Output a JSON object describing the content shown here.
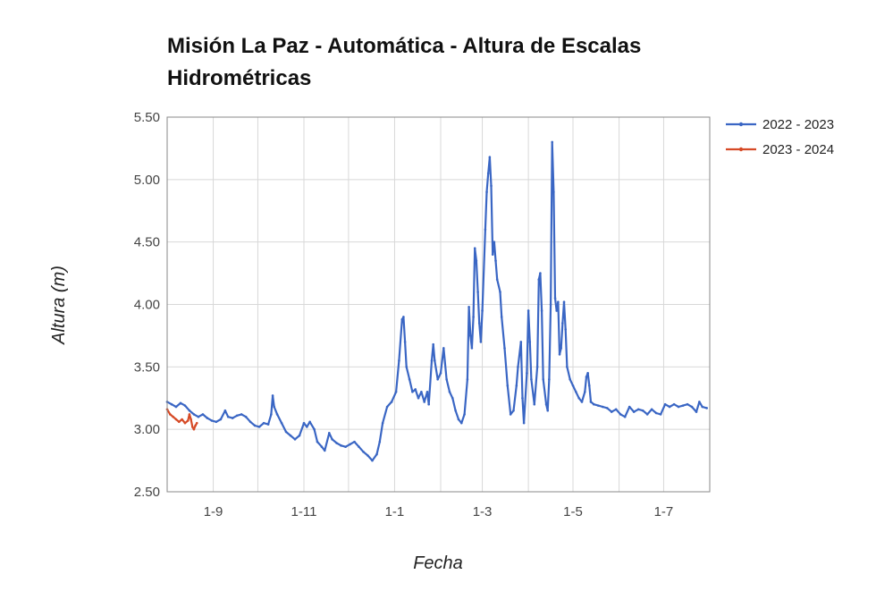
{
  "chart_data": {
    "type": "line",
    "title": "Misión La Paz - Automática - Altura de Escalas Hidrométricas",
    "xlabel": "Fecha",
    "ylabel": "Altura (m)",
    "ylim": [
      2.5,
      5.5
    ],
    "yticks": [
      "2.50",
      "3.00",
      "3.50",
      "4.00",
      "4.50",
      "5.00",
      "5.50"
    ],
    "x_axis_start": "2022-08-01",
    "x_axis_end": "2023-08-01",
    "xticks": [
      {
        "label": "1-9",
        "date": "2022-09-01"
      },
      {
        "label": "1-11",
        "date": "2022-11-01"
      },
      {
        "label": "1-1",
        "date": "2023-01-01"
      },
      {
        "label": "1-3",
        "date": "2023-03-01"
      },
      {
        "label": "1-5",
        "date": "2023-05-01"
      },
      {
        "label": "1-7",
        "date": "2023-07-01"
      }
    ],
    "grid": true,
    "legend_position": "right",
    "series": [
      {
        "name": "2022 - 2023",
        "color": "#3a66c4",
        "points": [
          [
            "2022-08-01",
            3.22
          ],
          [
            "2022-08-04",
            3.2
          ],
          [
            "2022-08-07",
            3.18
          ],
          [
            "2022-08-10",
            3.21
          ],
          [
            "2022-08-13",
            3.19
          ],
          [
            "2022-08-16",
            3.15
          ],
          [
            "2022-08-19",
            3.12
          ],
          [
            "2022-08-22",
            3.1
          ],
          [
            "2022-08-25",
            3.12
          ],
          [
            "2022-08-28",
            3.09
          ],
          [
            "2022-08-31",
            3.07
          ],
          [
            "2022-09-03",
            3.06
          ],
          [
            "2022-09-06",
            3.08
          ],
          [
            "2022-09-09",
            3.15
          ],
          [
            "2022-09-11",
            3.1
          ],
          [
            "2022-09-14",
            3.09
          ],
          [
            "2022-09-17",
            3.11
          ],
          [
            "2022-09-20",
            3.12
          ],
          [
            "2022-09-23",
            3.1
          ],
          [
            "2022-09-26",
            3.06
          ],
          [
            "2022-09-29",
            3.03
          ],
          [
            "2022-10-02",
            3.02
          ],
          [
            "2022-10-05",
            3.05
          ],
          [
            "2022-10-08",
            3.04
          ],
          [
            "2022-10-10",
            3.12
          ],
          [
            "2022-10-11",
            3.27
          ],
          [
            "2022-10-12",
            3.18
          ],
          [
            "2022-10-14",
            3.12
          ],
          [
            "2022-10-17",
            3.05
          ],
          [
            "2022-10-20",
            2.98
          ],
          [
            "2022-10-23",
            2.95
          ],
          [
            "2022-10-26",
            2.92
          ],
          [
            "2022-10-29",
            2.95
          ],
          [
            "2022-11-01",
            3.05
          ],
          [
            "2022-11-03",
            3.02
          ],
          [
            "2022-11-05",
            3.06
          ],
          [
            "2022-11-08",
            3.0
          ],
          [
            "2022-11-10",
            2.9
          ],
          [
            "2022-11-13",
            2.86
          ],
          [
            "2022-11-15",
            2.83
          ],
          [
            "2022-11-18",
            2.97
          ],
          [
            "2022-11-20",
            2.92
          ],
          [
            "2022-11-23",
            2.89
          ],
          [
            "2022-11-26",
            2.87
          ],
          [
            "2022-11-29",
            2.86
          ],
          [
            "2022-12-02",
            2.88
          ],
          [
            "2022-12-05",
            2.9
          ],
          [
            "2022-12-08",
            2.86
          ],
          [
            "2022-12-11",
            2.82
          ],
          [
            "2022-12-14",
            2.79
          ],
          [
            "2022-12-17",
            2.75
          ],
          [
            "2022-12-20",
            2.8
          ],
          [
            "2022-12-22",
            2.9
          ],
          [
            "2022-12-24",
            3.05
          ],
          [
            "2022-12-27",
            3.18
          ],
          [
            "2022-12-30",
            3.22
          ],
          [
            "2023-01-02",
            3.3
          ],
          [
            "2023-01-04",
            3.55
          ],
          [
            "2023-01-06",
            3.88
          ],
          [
            "2023-01-07",
            3.9
          ],
          [
            "2023-01-08",
            3.7
          ],
          [
            "2023-01-09",
            3.5
          ],
          [
            "2023-01-11",
            3.4
          ],
          [
            "2023-01-13",
            3.3
          ],
          [
            "2023-01-15",
            3.32
          ],
          [
            "2023-01-17",
            3.25
          ],
          [
            "2023-01-19",
            3.3
          ],
          [
            "2023-01-21",
            3.22
          ],
          [
            "2023-01-23",
            3.3
          ],
          [
            "2023-01-24",
            3.2
          ],
          [
            "2023-01-26",
            3.55
          ],
          [
            "2023-01-27",
            3.68
          ],
          [
            "2023-01-28",
            3.55
          ],
          [
            "2023-01-30",
            3.4
          ],
          [
            "2023-02-01",
            3.45
          ],
          [
            "2023-02-03",
            3.65
          ],
          [
            "2023-02-05",
            3.4
          ],
          [
            "2023-02-07",
            3.3
          ],
          [
            "2023-02-09",
            3.25
          ],
          [
            "2023-02-11",
            3.15
          ],
          [
            "2023-02-13",
            3.08
          ],
          [
            "2023-02-15",
            3.05
          ],
          [
            "2023-02-17",
            3.12
          ],
          [
            "2023-02-19",
            3.4
          ],
          [
            "2023-02-20",
            3.98
          ],
          [
            "2023-02-21",
            3.75
          ],
          [
            "2023-02-22",
            3.65
          ],
          [
            "2023-02-23",
            3.9
          ],
          [
            "2023-02-24",
            4.45
          ],
          [
            "2023-02-25",
            4.35
          ],
          [
            "2023-02-26",
            4.1
          ],
          [
            "2023-02-27",
            3.85
          ],
          [
            "2023-02-28",
            3.7
          ],
          [
            "2023-03-01",
            3.95
          ],
          [
            "2023-03-03",
            4.6
          ],
          [
            "2023-03-04",
            4.9
          ],
          [
            "2023-03-05",
            5.05
          ],
          [
            "2023-03-06",
            5.18
          ],
          [
            "2023-03-07",
            4.95
          ],
          [
            "2023-03-08",
            4.4
          ],
          [
            "2023-03-09",
            4.5
          ],
          [
            "2023-03-10",
            4.35
          ],
          [
            "2023-03-11",
            4.2
          ],
          [
            "2023-03-13",
            4.1
          ],
          [
            "2023-03-14",
            3.9
          ],
          [
            "2023-03-16",
            3.65
          ],
          [
            "2023-03-18",
            3.35
          ],
          [
            "2023-03-20",
            3.12
          ],
          [
            "2023-03-22",
            3.15
          ],
          [
            "2023-03-24",
            3.35
          ],
          [
            "2023-03-25",
            3.5
          ],
          [
            "2023-03-27",
            3.7
          ],
          [
            "2023-03-28",
            3.25
          ],
          [
            "2023-03-29",
            3.05
          ],
          [
            "2023-03-31",
            3.45
          ],
          [
            "2023-04-01",
            3.95
          ],
          [
            "2023-04-02",
            3.7
          ],
          [
            "2023-04-03",
            3.4
          ],
          [
            "2023-04-05",
            3.2
          ],
          [
            "2023-04-07",
            3.5
          ],
          [
            "2023-04-08",
            4.2
          ],
          [
            "2023-04-09",
            4.25
          ],
          [
            "2023-04-10",
            3.95
          ],
          [
            "2023-04-11",
            3.4
          ],
          [
            "2023-04-13",
            3.2
          ],
          [
            "2023-04-14",
            3.15
          ],
          [
            "2023-04-15",
            3.4
          ],
          [
            "2023-04-16",
            4.0
          ],
          [
            "2023-04-17",
            5.3
          ],
          [
            "2023-04-18",
            4.9
          ],
          [
            "2023-04-19",
            4.05
          ],
          [
            "2023-04-20",
            3.95
          ],
          [
            "2023-04-21",
            4.02
          ],
          [
            "2023-04-22",
            3.6
          ],
          [
            "2023-04-23",
            3.65
          ],
          [
            "2023-04-24",
            3.85
          ],
          [
            "2023-04-25",
            4.02
          ],
          [
            "2023-04-26",
            3.8
          ],
          [
            "2023-04-27",
            3.5
          ],
          [
            "2023-04-29",
            3.4
          ],
          [
            "2023-05-01",
            3.35
          ],
          [
            "2023-05-03",
            3.3
          ],
          [
            "2023-05-05",
            3.25
          ],
          [
            "2023-05-07",
            3.22
          ],
          [
            "2023-05-09",
            3.3
          ],
          [
            "2023-05-10",
            3.42
          ],
          [
            "2023-05-11",
            3.45
          ],
          [
            "2023-05-12",
            3.35
          ],
          [
            "2023-05-13",
            3.22
          ],
          [
            "2023-05-15",
            3.2
          ],
          [
            "2023-05-18",
            3.19
          ],
          [
            "2023-05-21",
            3.18
          ],
          [
            "2023-05-24",
            3.17
          ],
          [
            "2023-05-27",
            3.14
          ],
          [
            "2023-05-30",
            3.16
          ],
          [
            "2023-06-02",
            3.12
          ],
          [
            "2023-06-05",
            3.1
          ],
          [
            "2023-06-08",
            3.18
          ],
          [
            "2023-06-11",
            3.14
          ],
          [
            "2023-06-14",
            3.16
          ],
          [
            "2023-06-17",
            3.15
          ],
          [
            "2023-06-20",
            3.12
          ],
          [
            "2023-06-23",
            3.16
          ],
          [
            "2023-06-26",
            3.13
          ],
          [
            "2023-06-29",
            3.12
          ],
          [
            "2023-07-02",
            3.2
          ],
          [
            "2023-07-05",
            3.18
          ],
          [
            "2023-07-08",
            3.2
          ],
          [
            "2023-07-11",
            3.18
          ],
          [
            "2023-07-14",
            3.19
          ],
          [
            "2023-07-17",
            3.2
          ],
          [
            "2023-07-20",
            3.18
          ],
          [
            "2023-07-23",
            3.14
          ],
          [
            "2023-07-25",
            3.22
          ],
          [
            "2023-07-27",
            3.18
          ],
          [
            "2023-07-30",
            3.17
          ]
        ]
      },
      {
        "name": "2023 - 2024",
        "color": "#d64a26",
        "points": [
          [
            "2022-08-01",
            3.16
          ],
          [
            "2022-08-03",
            3.12
          ],
          [
            "2022-08-05",
            3.1
          ],
          [
            "2022-08-07",
            3.08
          ],
          [
            "2022-08-09",
            3.06
          ],
          [
            "2022-08-11",
            3.08
          ],
          [
            "2022-08-13",
            3.05
          ],
          [
            "2022-08-15",
            3.07
          ],
          [
            "2022-08-16",
            3.12
          ],
          [
            "2022-08-17",
            3.08
          ],
          [
            "2022-08-18",
            3.02
          ],
          [
            "2022-08-19",
            3.0
          ],
          [
            "2022-08-20",
            3.03
          ],
          [
            "2022-08-21",
            3.05
          ]
        ]
      }
    ]
  }
}
